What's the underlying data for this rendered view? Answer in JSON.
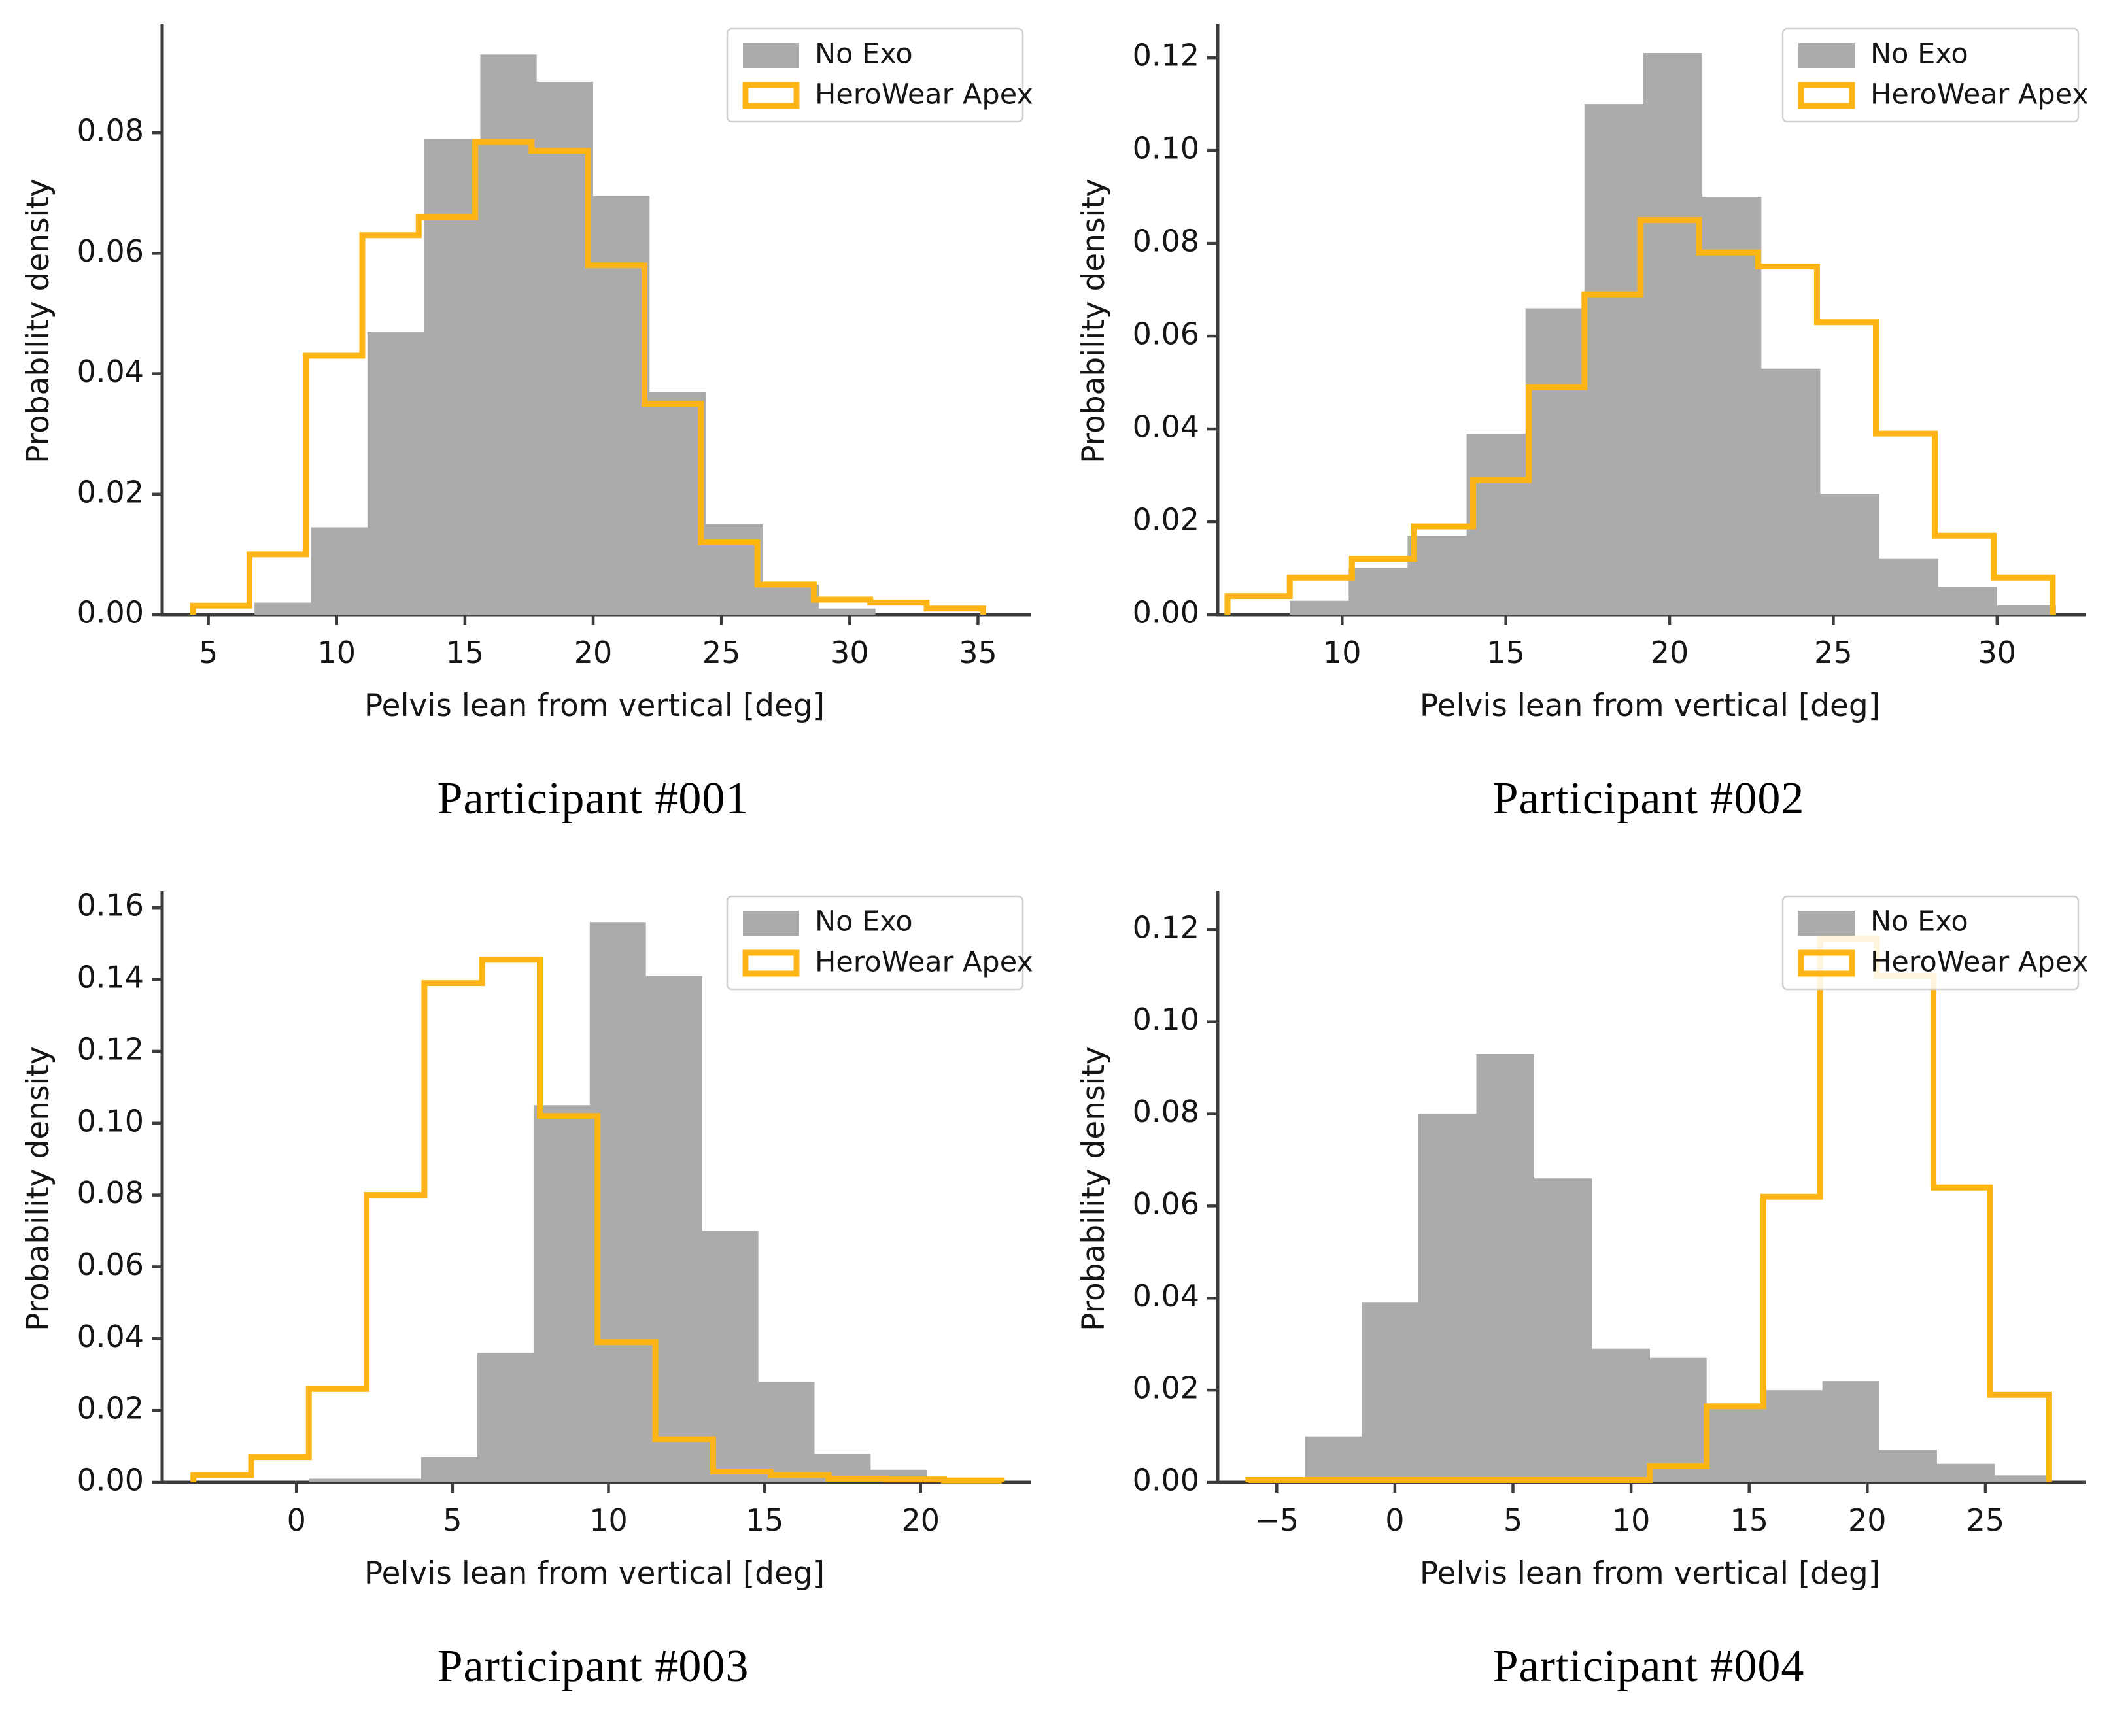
{
  "figure": {
    "caption_prefix": "Participant",
    "background": "#ffffff"
  },
  "colors": {
    "no_exo_fill": "#ababab",
    "apex_stroke": "#fdb515",
    "spine": "#3c3c3c",
    "tick_label": "#151515",
    "legend_border": "#cfcfcf",
    "legend_bg": "#ffffff"
  },
  "legend": {
    "items": [
      {
        "label": "No Exo",
        "swatch": "filled-gray"
      },
      {
        "label": "HeroWear Apex",
        "swatch": "outlined-amber"
      }
    ]
  },
  "chart_data": [
    {
      "type": "histogram",
      "title": "Participant #001",
      "xlabel": "Pelvis lean from vertical [deg]",
      "ylabel": "Probability density",
      "xlim": [
        3.2,
        36.9
      ],
      "ylim": [
        0,
        0.0975
      ],
      "xticks": [
        5,
        10,
        15,
        20,
        25,
        30,
        35
      ],
      "yticks": [
        0.0,
        0.02,
        0.04,
        0.06,
        0.08
      ],
      "grid": false,
      "legend_position": "top-right",
      "series": [
        {
          "name": "No Exo",
          "style": "filled-step",
          "color": "#ababab",
          "bin_edges": [
            6.8,
            9.0,
            11.2,
            13.4,
            15.6,
            17.8,
            20.0,
            22.2,
            24.4,
            26.6,
            28.8,
            31.0
          ],
          "densities": [
            0.002,
            0.0145,
            0.047,
            0.079,
            0.093,
            0.0885,
            0.0695,
            0.037,
            0.015,
            0.005,
            0.001
          ]
        },
        {
          "name": "HeroWear Apex",
          "style": "step-outline",
          "color": "#fdb515",
          "bin_edges": [
            4.4,
            6.6,
            8.8,
            11.0,
            13.2,
            15.4,
            17.6,
            19.8,
            22.0,
            24.2,
            26.4,
            28.6,
            30.8,
            33.0,
            35.2
          ],
          "densities": [
            0.0015,
            0.01,
            0.043,
            0.063,
            0.066,
            0.0785,
            0.077,
            0.058,
            0.035,
            0.012,
            0.005,
            0.0025,
            0.002,
            0.001
          ]
        }
      ]
    },
    {
      "type": "histogram",
      "title": "Participant #002",
      "xlabel": "Pelvis lean from vertical [deg]",
      "ylabel": "Probability density",
      "xlim": [
        6.2,
        32.6
      ],
      "ylim": [
        0,
        0.1265
      ],
      "xticks": [
        10,
        15,
        20,
        25,
        30
      ],
      "yticks": [
        0.0,
        0.02,
        0.04,
        0.06,
        0.08,
        0.1,
        0.12
      ],
      "grid": false,
      "legend_position": "top-right",
      "series": [
        {
          "name": "No Exo",
          "style": "filled-step",
          "color": "#ababab",
          "bin_edges": [
            8.4,
            10.2,
            12.0,
            13.8,
            15.6,
            17.4,
            19.2,
            21.0,
            22.8,
            24.6,
            26.4,
            28.2,
            30.0,
            31.8
          ],
          "densities": [
            0.003,
            0.01,
            0.017,
            0.039,
            0.066,
            0.11,
            0.121,
            0.09,
            0.053,
            0.026,
            0.012,
            0.006,
            0.002
          ]
        },
        {
          "name": "HeroWear Apex",
          "style": "step-outline",
          "color": "#fdb515",
          "bin_edges": [
            6.5,
            8.4,
            10.3,
            12.2,
            14.0,
            15.7,
            17.4,
            19.1,
            20.9,
            22.7,
            24.5,
            26.3,
            28.1,
            29.9,
            31.7
          ],
          "densities": [
            0.004,
            0.008,
            0.012,
            0.019,
            0.029,
            0.049,
            0.069,
            0.085,
            0.078,
            0.075,
            0.063,
            0.039,
            0.017,
            0.008
          ]
        }
      ]
    },
    {
      "type": "histogram",
      "title": "Participant #003",
      "xlabel": "Pelvis lean from vertical [deg]",
      "ylabel": "Probability density",
      "xlim": [
        -4.3,
        23.4
      ],
      "ylim": [
        0,
        0.1635
      ],
      "xticks": [
        0,
        5,
        10,
        15,
        20
      ],
      "yticks": [
        0.0,
        0.02,
        0.04,
        0.06,
        0.08,
        0.1,
        0.12,
        0.14,
        0.16
      ],
      "grid": false,
      "legend_position": "top-right",
      "series": [
        {
          "name": "No Exo",
          "style": "filled-step",
          "color": "#ababab",
          "bin_edges": [
            0.4,
            2.2,
            4.0,
            5.8,
            7.6,
            9.4,
            11.2,
            13.0,
            14.8,
            16.6,
            18.4,
            20.2
          ],
          "densities": [
            0.001,
            0.001,
            0.007,
            0.036,
            0.105,
            0.156,
            0.141,
            0.07,
            0.028,
            0.008,
            0.0035
          ]
        },
        {
          "name": "HeroWear Apex",
          "style": "step-outline",
          "color": "#fdb515",
          "bin_edges": [
            -3.3,
            -1.45,
            0.4,
            2.25,
            4.1,
            5.95,
            7.8,
            9.65,
            11.5,
            13.35,
            15.2,
            17.05,
            18.9,
            20.75,
            22.6
          ],
          "densities": [
            0.002,
            0.007,
            0.026,
            0.08,
            0.139,
            0.1455,
            0.102,
            0.039,
            0.012,
            0.003,
            0.002,
            0.001,
            0.0008,
            0.0005
          ]
        }
      ]
    },
    {
      "type": "histogram",
      "title": "Participant #004",
      "xlabel": "Pelvis lean from vertical [deg]",
      "ylabel": "Probability density",
      "xlim": [
        -7.5,
        29.1
      ],
      "ylim": [
        0,
        0.1275
      ],
      "xticks": [
        -5,
        0,
        5,
        10,
        15,
        20,
        25
      ],
      "yticks": [
        0.0,
        0.02,
        0.04,
        0.06,
        0.08,
        0.1,
        0.12
      ],
      "grid": false,
      "legend_position": "top-right",
      "series": [
        {
          "name": "No Exo",
          "style": "filled-step",
          "color": "#ababab",
          "bin_edges": [
            -6.2,
            -3.8,
            -1.4,
            1.0,
            3.45,
            5.9,
            8.35,
            10.8,
            13.2,
            15.65,
            18.1,
            20.5,
            22.95,
            25.4,
            27.8
          ],
          "densities": [
            0.0005,
            0.01,
            0.039,
            0.08,
            0.093,
            0.066,
            0.029,
            0.027,
            0.017,
            0.02,
            0.022,
            0.007,
            0.004,
            0.0015
          ]
        },
        {
          "name": "HeroWear Apex",
          "style": "step-outline",
          "color": "#fdb515",
          "bin_edges": [
            -6.2,
            10.8,
            13.2,
            15.6,
            18.0,
            20.4,
            22.8,
            25.2,
            27.7
          ],
          "densities": [
            0.0005,
            0.0035,
            0.0165,
            0.062,
            0.118,
            0.11,
            0.064,
            0.019
          ]
        }
      ]
    }
  ]
}
